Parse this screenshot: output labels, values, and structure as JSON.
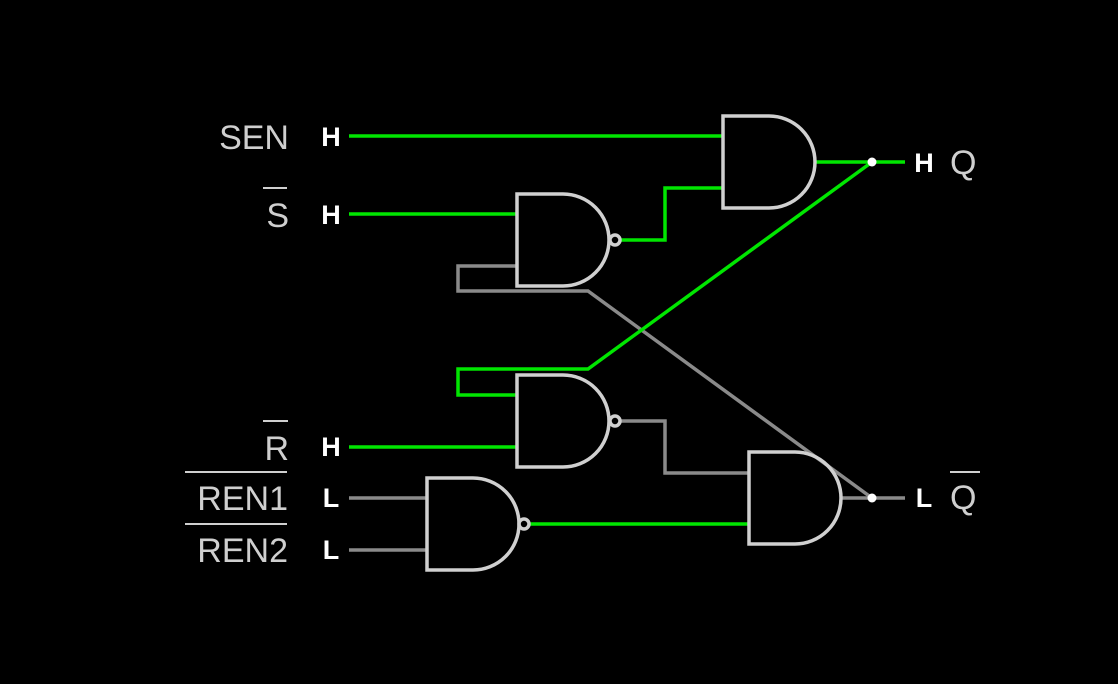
{
  "inputs": [
    {
      "id": "sen",
      "name": "SEN",
      "state": "H",
      "overline": false
    },
    {
      "id": "s",
      "name": "S",
      "state": "H",
      "overline": true
    },
    {
      "id": "r",
      "name": "R",
      "state": "H",
      "overline": true
    },
    {
      "id": "ren1",
      "name": "REN1",
      "state": "L",
      "overline": true
    },
    {
      "id": "ren2",
      "name": "REN2",
      "state": "L",
      "overline": true
    }
  ],
  "outputs": [
    {
      "id": "q",
      "name": "Q",
      "state": "H",
      "overline": false
    },
    {
      "id": "qbar",
      "name": "Q",
      "state": "L",
      "overline": true
    }
  ],
  "colors": {
    "background": "#000000",
    "high": "#00e600",
    "low": "#8a8a8a",
    "gate": "#d0d0d0",
    "label": "#cfcfcf",
    "state_text": "#ffffff",
    "junction": "#ffffff"
  }
}
